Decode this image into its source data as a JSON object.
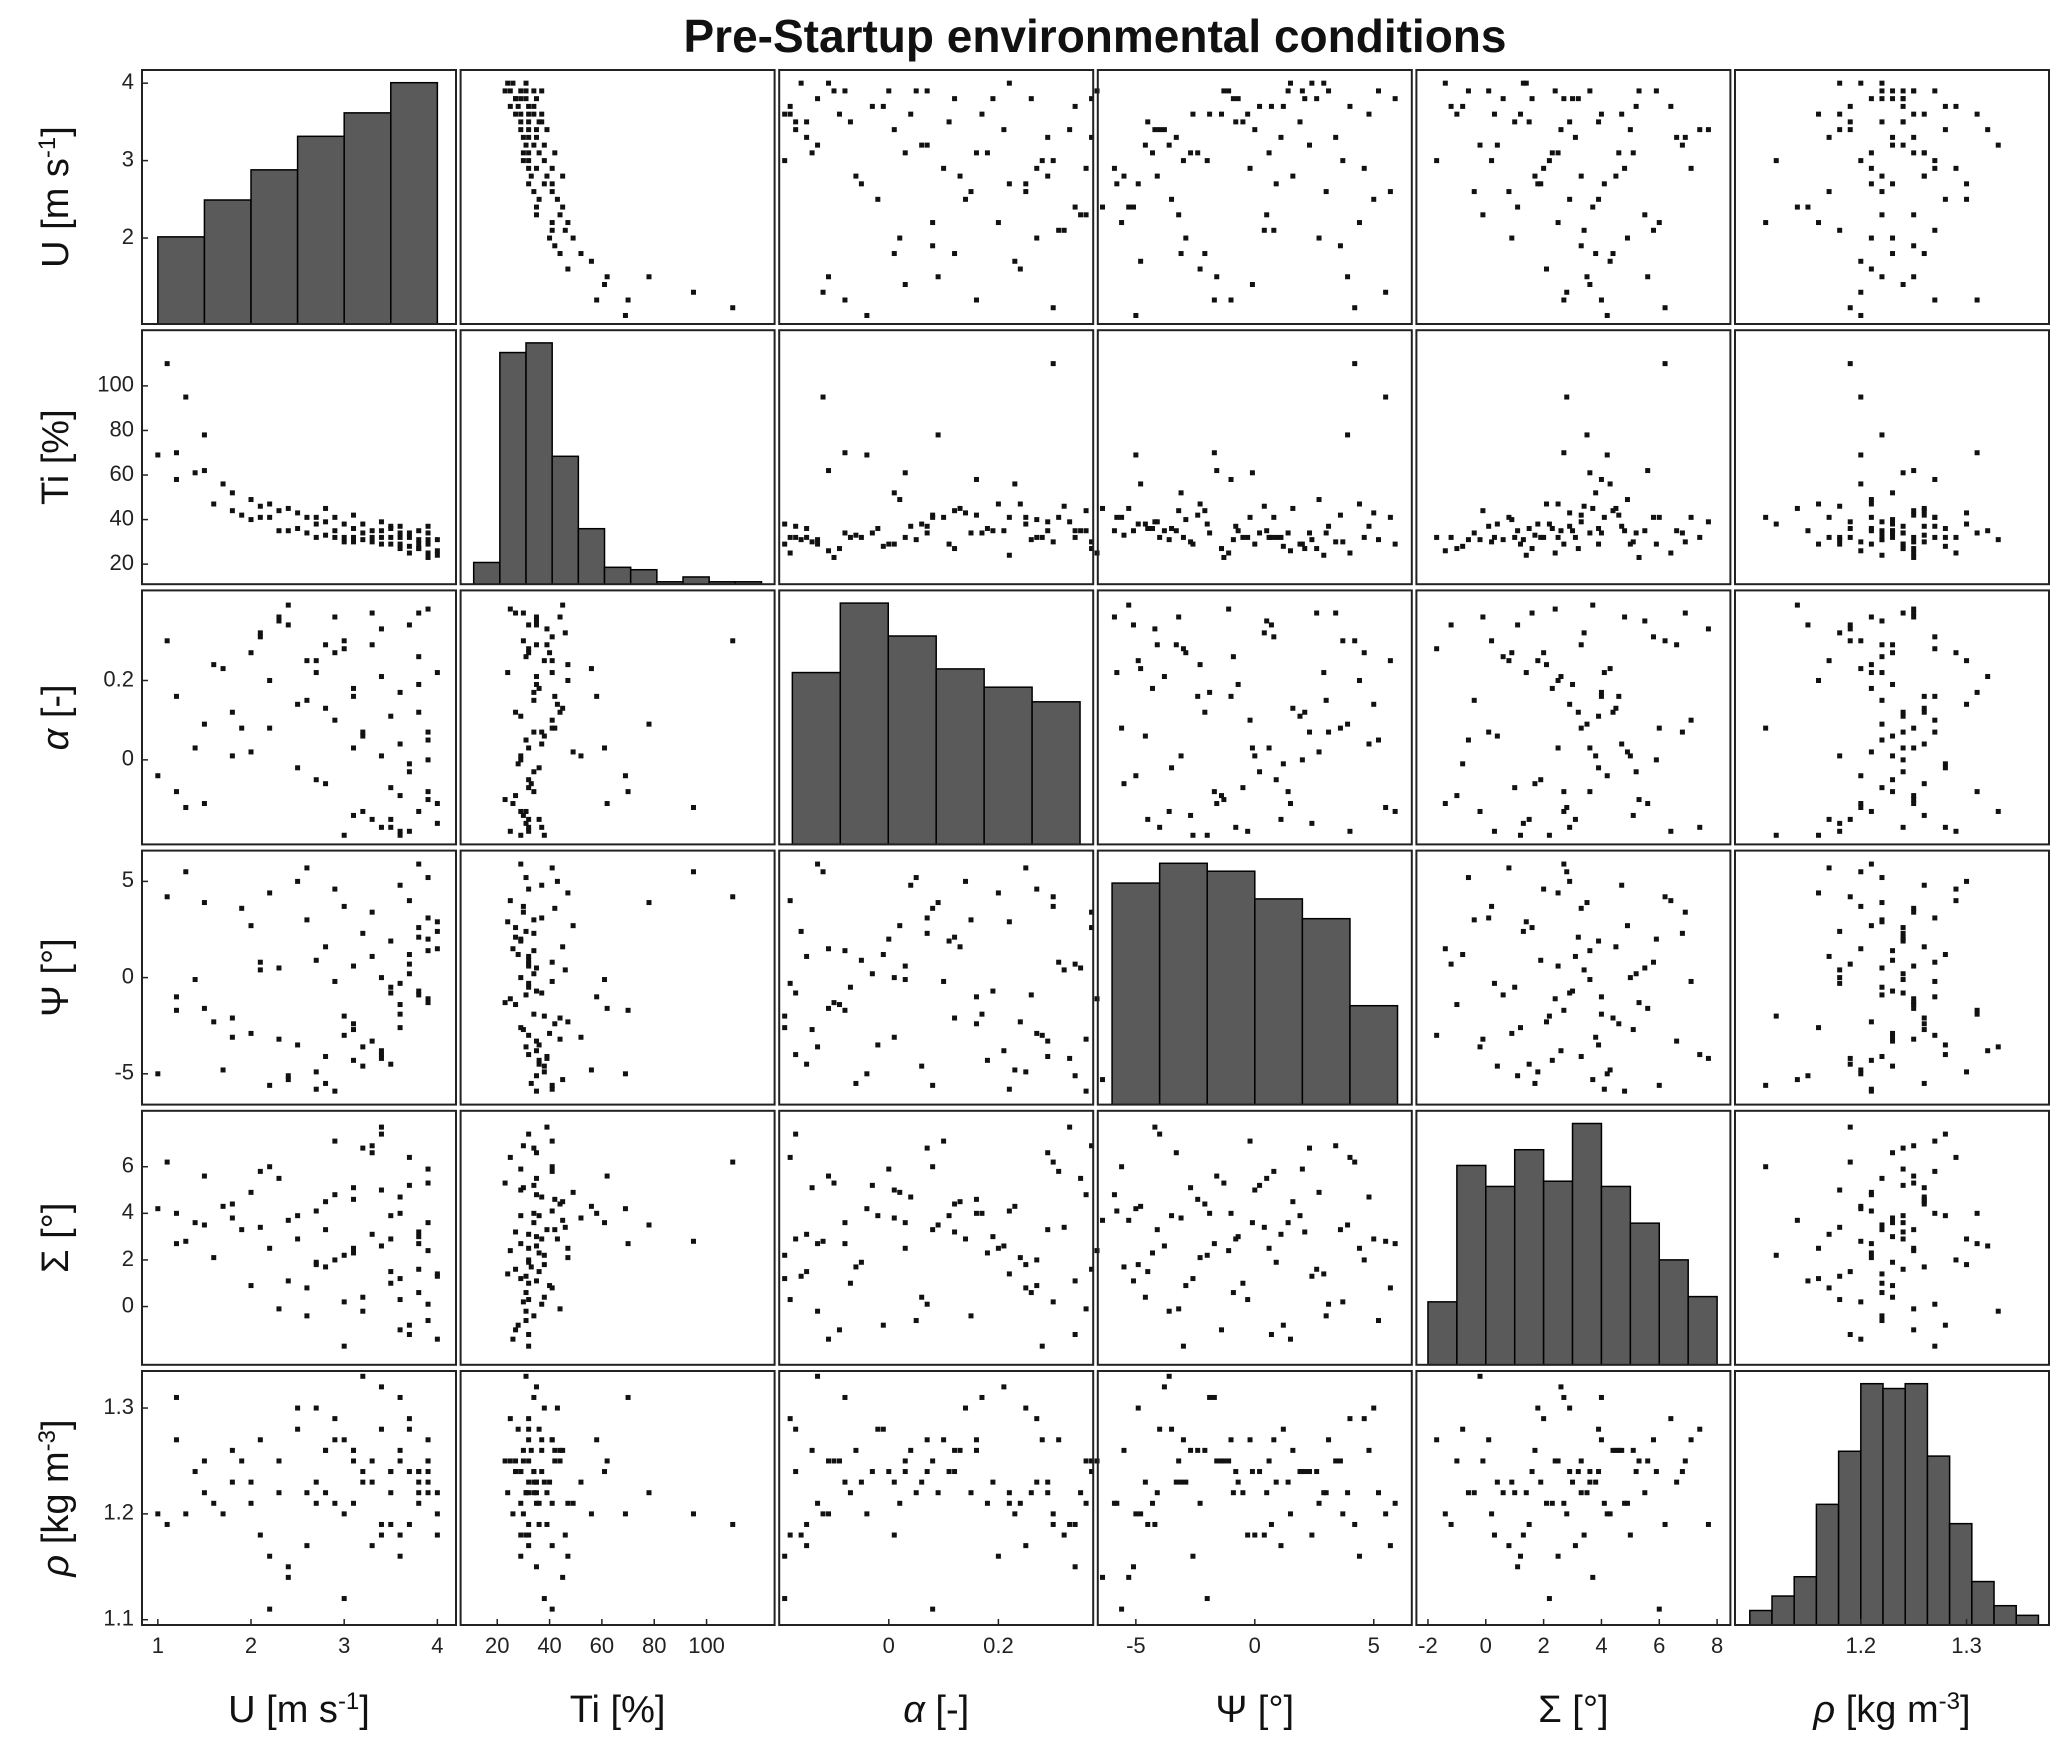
{
  "chart_data": {
    "type": "scatter_matrix",
    "title": "Pre-Startup environmental conditions",
    "point_color": "#111111",
    "bar_color": "#5a5a5a",
    "variables": [
      {
        "label": [
          {
            "text": "U [m s"
          },
          {
            "sup": "-1"
          },
          {
            "text": "]"
          }
        ],
        "xlim": [
          0.83,
          4.2
        ],
        "ylim": [
          0.89,
          4.17
        ],
        "xticks": [
          1,
          2,
          3,
          4
        ],
        "yticks": [
          2,
          3,
          4
        ],
        "hist": {
          "bins": [
            1,
            1.5,
            2,
            2.5,
            3,
            3.5,
            4
          ],
          "counts": [
            26,
            37,
            46,
            56,
            63,
            72
          ]
        },
        "samples": [
          3.8,
          3.5,
          2.1,
          3.9,
          1.2,
          2.7,
          3.3,
          3.6,
          1.8,
          2.9,
          4.0,
          3.1,
          2.4,
          3.7,
          1.5,
          3.4,
          2.6,
          3.9,
          2.0,
          3.2,
          3.8,
          1.1,
          2.8,
          3.5,
          3.0,
          2.3,
          3.9,
          1.7,
          3.6,
          2.5,
          3.3,
          4.0,
          1.4,
          2.9,
          3.7,
          2.2,
          3.1,
          3.8,
          1.9,
          3.4,
          2.7,
          3.6,
          1.3,
          3.0,
          3.9,
          2.4,
          3.5,
          2.8,
          1.6,
          3.7,
          3.2,
          2.1,
          3.9,
          2.6,
          3.4,
          1.0,
          3.8,
          2.9,
          3.3,
          2.0,
          3.6,
          3.1,
          1.5,
          3.7,
          2.5,
          4.0,
          2.2,
          3.5,
          3.0,
          1.8,
          3.9,
          2.7,
          3.4,
          2.3,
          3.8,
          1.2,
          3.2,
          3.6,
          2.8,
          3.1
        ]
      },
      {
        "label": [
          {
            "text": "Ti [%]"
          }
        ],
        "xlim": [
          6,
          126
        ],
        "ylim": [
          11,
          125
        ],
        "xticks": [
          20,
          40,
          60,
          80,
          100
        ],
        "yticks": [
          20,
          40,
          60,
          80,
          100
        ],
        "hist": {
          "bins": [
            11,
            21,
            31,
            41,
            51,
            61,
            71,
            81,
            91,
            101,
            111,
            121
          ],
          "counts": [
            9,
            96,
            100,
            53,
            23,
            7,
            6,
            1,
            3,
            1,
            1
          ]
        },
        "samples": [
          27,
          36,
          41,
          31,
          70,
          41,
          30,
          32,
          52,
          32,
          26,
          42,
          35,
          34,
          78,
          32,
          41,
          25,
          49,
          31,
          35,
          110,
          33,
          29,
          38,
          35,
          37,
          56,
          27,
          43,
          35,
          31,
          61,
          35,
          28,
          47,
          30,
          31,
          42,
          39,
          32,
          34,
          95,
          32,
          29,
          45,
          32,
          45,
          47,
          25,
          38,
          46,
          23,
          34,
          35,
          69,
          27,
          41,
          32,
          40,
          37,
          36,
          62,
          32,
          36,
          24,
          41,
          37,
          30,
          44,
          34,
          38,
          29,
          44,
          29,
          58,
          34,
          29,
          39,
          32
        ]
      },
      {
        "label": [
          {
            "text": "α",
            "italic": true
          },
          {
            "text": " [-]"
          }
        ],
        "xlim": [
          -0.2,
          0.373
        ],
        "ylim": [
          -0.213,
          0.427
        ],
        "xticks": [
          0,
          0.2
        ],
        "yticks": [
          0,
          0.2
        ],
        "hist": {
          "bins": [
            -0.176,
            -0.0885,
            -0.001,
            0.0865,
            0.174,
            0.2615,
            0.349
          ],
          "counts": [
            47,
            66,
            57,
            48,
            43,
            39
          ]
        },
        "samples": [
          0.12,
          -0.15,
          0.31,
          0.05,
          -0.08,
          0.22,
          0.37,
          -0.18,
          0.01,
          0.27,
          -0.11,
          0.16,
          0.34,
          -0.03,
          0.09,
          -0.17,
          0.25,
          0.38,
          0.02,
          -0.13,
          0.19,
          0.3,
          -0.06,
          0.11,
          -0.19,
          0.35,
          0.07,
          0.23,
          -0.09,
          0.14,
          0.29,
          -0.16,
          0.03,
          0.36,
          -0.01,
          0.2,
          -0.14,
          0.26,
          0.08,
          0.33,
          -0.05,
          0.17,
          -0.12,
          0.28,
          0.0,
          0.39,
          -0.07,
          0.13,
          0.24,
          -0.18,
          0.06,
          0.32,
          -0.1,
          0.15,
          0.21,
          -0.04,
          0.37,
          0.1,
          -0.15,
          0.27,
          0.04,
          0.18,
          -0.11,
          0.34,
          -0.02,
          0.22,
          0.08,
          -0.17,
          0.3,
          0.12,
          -0.08,
          0.25,
          0.01,
          0.36,
          -0.13,
          0.16,
          0.07,
          -0.19,
          0.29,
          0.03
        ]
      },
      {
        "label": [
          {
            "text": "Ψ [°]"
          }
        ],
        "xlim": [
          -6.6,
          6.6
        ],
        "ylim": [
          -6.6,
          6.6
        ],
        "xticks": [
          -5,
          0,
          5
        ],
        "yticks": [
          -5,
          0,
          5
        ],
        "hist": {
          "bins": [
            -6,
            -4,
            -2,
            0,
            2,
            4,
            6
          ],
          "counts": [
            56,
            61,
            59,
            52,
            47,
            25
          ]
        },
        "samples": [
          2.1,
          -4.5,
          0.8,
          5.2,
          -1.7,
          -5.8,
          3.4,
          -0.3,
          -3.1,
          4.6,
          1.5,
          -2.4,
          -5.1,
          0.2,
          3.9,
          -4.0,
          5.7,
          -1.1,
          2.7,
          -3.6,
          -0.7,
          4.2,
          -5.5,
          1.9,
          -2.0,
          0.5,
          3.1,
          -4.8,
          -1.4,
          5.0,
          -3.3,
          2.4,
          -0.1,
          -5.9,
          1.2,
          4.4,
          -2.7,
          -0.9,
          3.6,
          -4.2,
          0.9,
          -1.9,
          5.5,
          -3.0,
          2.0,
          -5.3,
          -0.5,
          1.6,
          -2.3,
          4.0,
          -4.6,
          0.4,
          -1.3,
          3.0,
          -3.8,
          -5.0,
          2.6,
          -0.2,
          1.1,
          -2.9,
          4.8,
          -4.3,
          -1.6,
          0.7,
          -3.5,
          2.9,
          -5.6,
          -0.8,
          3.7,
          -2.1,
          1.4,
          -4.9,
          0.0,
          -3.2,
          5.9,
          -1.0,
          2.3,
          -2.6,
          -4.1,
          0.6
        ]
      },
      {
        "label": [
          {
            "text": "Σ [°]"
          }
        ],
        "xlim": [
          -2.4,
          8.46
        ],
        "ylim": [
          -2.5,
          8.4
        ],
        "xticks": [
          -2,
          0,
          2,
          4,
          6,
          8
        ],
        "yticks": [
          0,
          2,
          4,
          6
        ],
        "hist": {
          "bins": [
            -2,
            -1,
            0,
            1,
            2,
            3,
            4,
            5,
            6,
            7,
            8
          ],
          "counts": [
            12,
            38,
            34,
            41,
            35,
            46,
            34,
            27,
            20,
            13
          ]
        },
        "samples": [
          3.2,
          1.5,
          5.8,
          -0.6,
          2.7,
          4.1,
          6.9,
          0.3,
          3.8,
          2.0,
          -1.4,
          4.6,
          1.1,
          5.2,
          3.5,
          7.4,
          0.8,
          2.4,
          4.9,
          -0.2,
          3.0,
          6.2,
          1.7,
          3.9,
          2.2,
          5.5,
          0.1,
          4.3,
          -1.0,
          2.9,
          6.6,
          1.3,
          3.6,
          4.8,
          -0.8,
          2.5,
          5.1,
          0.6,
          3.3,
          7.7,
          1.9,
          4.0,
          2.8,
          -1.7,
          5.9,
          3.7,
          1.0,
          4.5,
          2.1,
          6.4,
          0.4,
          3.4,
          5.3,
          -0.4,
          2.6,
          4.2,
          1.6,
          7.1,
          3.1,
          0.9,
          4.7,
          2.3,
          5.6,
          -1.2,
          3.9,
          1.4,
          6.0,
          2.9,
          0.2,
          4.4,
          3.6,
          1.8,
          5.0,
          -0.1,
          2.7,
          4.0,
          6.8,
          1.2,
          3.3,
          2.5
        ]
      },
      {
        "label": [
          {
            "text": "ρ",
            "italic": true
          },
          {
            "text": " [kg m"
          },
          {
            "sup": "-3"
          },
          {
            "text": "]"
          }
        ],
        "xlim": [
          1.081,
          1.378
        ],
        "ylim": [
          1.095,
          1.335
        ],
        "xticks": [
          1.2,
          1.3
        ],
        "yticks": [
          1.1,
          1.2,
          1.3
        ],
        "hist": {
          "bins": [
            1.095,
            1.116,
            1.137,
            1.158,
            1.179,
            1.2,
            1.221,
            1.242,
            1.263,
            1.284,
            1.305,
            1.326,
            1.347,
            1.368
          ],
          "counts": [
            3,
            6,
            10,
            25,
            36,
            50,
            49,
            50,
            35,
            21,
            9,
            4,
            2
          ]
        },
        "samples": [
          1.24,
          1.19,
          1.27,
          1.22,
          1.31,
          1.21,
          1.25,
          1.18,
          1.23,
          1.29,
          1.2,
          1.26,
          1.15,
          1.24,
          1.22,
          1.28,
          1.17,
          1.25,
          1.21,
          1.33,
          1.23,
          1.19,
          1.26,
          1.24,
          1.12,
          1.22,
          1.27,
          1.2,
          1.25,
          1.3,
          1.23,
          1.18,
          1.24,
          1.21,
          1.28,
          1.16,
          1.26,
          1.22,
          1.25,
          1.19,
          1.23,
          1.31,
          1.2,
          1.27,
          1.24,
          1.14,
          1.22,
          1.26,
          1.21,
          1.29,
          1.23,
          1.18,
          1.25,
          1.22,
          1.32,
          1.2,
          1.24,
          1.27,
          1.17,
          1.23,
          1.26,
          1.21,
          1.25,
          1.19,
          1.28,
          1.22,
          1.11,
          1.24,
          1.2,
          1.26,
          1.23,
          1.3,
          1.18,
          1.25,
          1.21,
          1.27,
          1.24,
          1.16,
          1.22,
          1.25
        ]
      }
    ]
  }
}
